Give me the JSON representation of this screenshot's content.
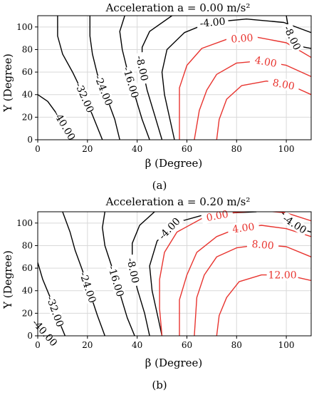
{
  "chart_data": [
    {
      "type": "contour",
      "panel_label": "(a)",
      "title": "Acceleration a = 0.00 m/s²",
      "xlabel": "β (Degree)",
      "ylabel": "Υ (Degree)",
      "xlim": [
        0,
        110
      ],
      "ylim": [
        0,
        110
      ],
      "xticks": [
        "0",
        "20",
        "40",
        "60",
        "80",
        "100"
      ],
      "yticks": [
        "0",
        "20",
        "40",
        "60",
        "80",
        "100"
      ],
      "grid": true,
      "series": [
        {
          "level_label": "-40.00",
          "color": "#000000",
          "points": [
            [
              0,
              40
            ],
            [
              4,
              34
            ],
            [
              8,
              22
            ],
            [
              11,
              12
            ],
            [
              14,
              0
            ]
          ]
        },
        {
          "level_label": "-32.00",
          "color": "#000000",
          "points": [
            [
              8,
              110
            ],
            [
              8,
              92
            ],
            [
              10,
              76
            ],
            [
              14,
              60
            ],
            [
              18,
              42
            ],
            [
              22,
              22
            ],
            [
              26,
              0
            ]
          ]
        },
        {
          "level_label": "-24.00",
          "color": "#000000",
          "points": [
            [
              21,
              110
            ],
            [
              21,
              92
            ],
            [
              22,
              76
            ],
            [
              24,
              58
            ],
            [
              28,
              36
            ],
            [
              31,
              18
            ],
            [
              33,
              0
            ]
          ]
        },
        {
          "level_label": "-16.00",
          "color": "#000000",
          "points": [
            [
              35,
              110
            ],
            [
              33,
              96
            ],
            [
              34,
              80
            ],
            [
              36,
              62
            ],
            [
              39,
              40
            ],
            [
              42,
              18
            ],
            [
              45,
              0
            ]
          ]
        },
        {
          "level_label": "-8.00",
          "color": "#000000",
          "points": [
            [
              54,
              110
            ],
            [
              45,
              96
            ],
            [
              42,
              82
            ],
            [
              42,
              64
            ],
            [
              44,
              44
            ],
            [
              47,
              22
            ],
            [
              50,
              0
            ]
          ]
        },
        {
          "level_label": "-8.00",
          "color": "#000000",
          "points": [
            [
              100,
              110
            ],
            [
              101,
              97
            ],
            [
              103,
              88
            ],
            [
              105,
              83
            ],
            [
              110,
              81
            ]
          ]
        },
        {
          "level_label": "-4.00",
          "color": "#000000",
          "points": [
            [
              110,
              95
            ],
            [
              99,
              104
            ],
            [
              84,
              107
            ],
            [
              69,
              104
            ],
            [
              59,
              95
            ],
            [
              52,
              80
            ],
            [
              50,
              60
            ],
            [
              51,
              40
            ],
            [
              53,
              20
            ],
            [
              55,
              0
            ]
          ]
        },
        {
          "level_label": "0.00",
          "color": "#e8342f",
          "points": [
            [
              110,
              73
            ],
            [
              100,
              86
            ],
            [
              88,
              91
            ],
            [
              76,
              89
            ],
            [
              66,
              81
            ],
            [
              60,
              66
            ],
            [
              57,
              46
            ],
            [
              57,
              24
            ],
            [
              57,
              0
            ]
          ]
        },
        {
          "level_label": "4.00",
          "color": "#e8342f",
          "points": [
            [
              110,
              56
            ],
            [
              100,
              66
            ],
            [
              90,
              70
            ],
            [
              80,
              68
            ],
            [
              72,
              58
            ],
            [
              68,
              44
            ],
            [
              65,
              26
            ],
            [
              63,
              0
            ]
          ]
        },
        {
          "level_label": "8.00",
          "color": "#e8342f",
          "points": [
            [
              110,
              40
            ],
            [
              102,
              48
            ],
            [
              92,
              52
            ],
            [
              82,
              48
            ],
            [
              76,
              36
            ],
            [
              73,
              18
            ],
            [
              72,
              0
            ]
          ]
        }
      ]
    },
    {
      "type": "contour",
      "panel_label": "(b)",
      "title": "Acceleration a = 0.20 m/s²",
      "xlabel": "β (Degree)",
      "ylabel": "Υ (Degree)",
      "xlim": [
        0,
        110
      ],
      "ylim": [
        0,
        110
      ],
      "xticks": [
        "0",
        "20",
        "40",
        "60",
        "80",
        "100"
      ],
      "yticks": [
        "0",
        "20",
        "40",
        "60",
        "80",
        "100"
      ],
      "grid": true,
      "series": [
        {
          "level_label": "-40.00",
          "color": "#000000",
          "points": [
            [
              0,
              10
            ],
            [
              2,
              5
            ],
            [
              4,
              0
            ]
          ]
        },
        {
          "level_label": "-32.00",
          "color": "#000000",
          "points": [
            [
              0,
              65
            ],
            [
              2,
              50
            ],
            [
              5,
              34
            ],
            [
              8,
              16
            ],
            [
              11,
              0
            ]
          ]
        },
        {
          "level_label": "-24.00",
          "color": "#000000",
          "points": [
            [
              10,
              110
            ],
            [
              13,
              92
            ],
            [
              15,
              76
            ],
            [
              18,
              58
            ],
            [
              21,
              38
            ],
            [
              24,
              18
            ],
            [
              27,
              0
            ]
          ]
        },
        {
          "level_label": "-16.00",
          "color": "#000000",
          "points": [
            [
              27,
              110
            ],
            [
              26,
              96
            ],
            [
              27,
              80
            ],
            [
              30,
              60
            ],
            [
              33,
              38
            ],
            [
              36,
              16
            ],
            [
              39,
              0
            ]
          ]
        },
        {
          "level_label": "-8.00",
          "color": "#000000",
          "points": [
            [
              47,
              110
            ],
            [
              41,
              98
            ],
            [
              38,
              82
            ],
            [
              38,
              62
            ],
            [
              40,
              42
            ],
            [
              43,
              20
            ],
            [
              45,
              0
            ]
          ]
        },
        {
          "level_label": "-4.00",
          "color": "#000000",
          "points": [
            [
              88,
              110
            ],
            [
              68,
              108
            ],
            [
              55,
              100
            ],
            [
              48,
              84
            ],
            [
              45,
              62
            ],
            [
              46,
              40
            ],
            [
              48,
              20
            ],
            [
              50,
              0
            ]
          ]
        },
        {
          "level_label": "-4.00",
          "color": "#000000",
          "points": [
            [
              98,
              110
            ],
            [
              102,
              101
            ],
            [
              107,
              94
            ],
            [
              110,
              92
            ]
          ]
        },
        {
          "level_label": "0.00",
          "color": "#e8342f",
          "points": [
            [
              110,
              102
            ],
            [
              100,
              109
            ],
            [
              90,
              111
            ],
            [
              78,
              109
            ],
            [
              66,
              104
            ],
            [
              56,
              92
            ],
            [
              51,
              74
            ],
            [
              49,
              50
            ],
            [
              49,
              24
            ],
            [
              50,
              0
            ]
          ]
        },
        {
          "level_label": "4.00",
          "color": "#e8342f",
          "points": [
            [
              110,
              88
            ],
            [
              100,
              95
            ],
            [
              90,
              98
            ],
            [
              80,
              95
            ],
            [
              72,
              88
            ],
            [
              64,
              74
            ],
            [
              60,
              54
            ],
            [
              57,
              32
            ],
            [
              57,
              0
            ]
          ]
        },
        {
          "level_label": "8.00",
          "color": "#e8342f",
          "points": [
            [
              110,
              70
            ],
            [
              100,
              79
            ],
            [
              90,
              81
            ],
            [
              80,
              78
            ],
            [
              72,
              70
            ],
            [
              67,
              54
            ],
            [
              64,
              34
            ],
            [
              63,
              0
            ]
          ]
        },
        {
          "level_label": "12.00",
          "color": "#e8342f",
          "points": [
            [
              110,
              49
            ],
            [
              100,
              54
            ],
            [
              90,
              54
            ],
            [
              81,
              48
            ],
            [
              76,
              34
            ],
            [
              73,
              18
            ],
            [
              72,
              0
            ]
          ]
        }
      ]
    }
  ]
}
